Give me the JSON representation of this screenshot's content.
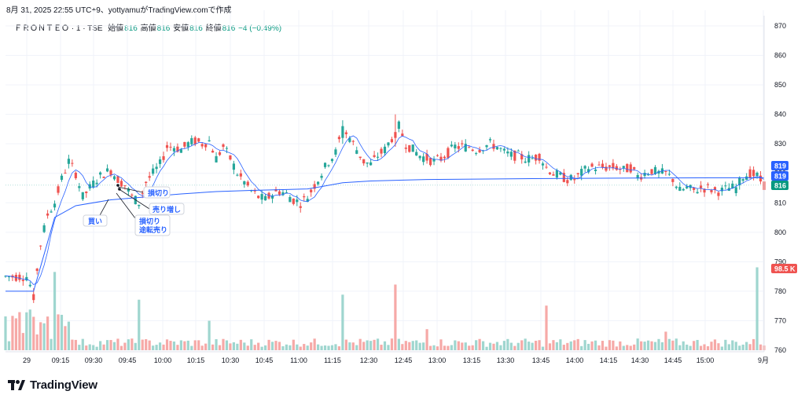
{
  "header": {
    "snapshot_line": "8月 31, 2025 22:55 UTC+9、yottyamuがTradingView.comで作成"
  },
  "legend": {
    "symbol": "ＦＲＯＮＴＥＯ · 1 · TSE",
    "open_label": "始値",
    "open_value": "816",
    "high_label": "高値",
    "high_value": "816",
    "low_label": "安値",
    "low_value": "816",
    "close_label": "終値",
    "close_value": "816",
    "change": "−4 (−0.49%)"
  },
  "footer": {
    "brand": "TradingView"
  },
  "colors": {
    "up": "#26a69a",
    "down": "#ef5350",
    "vwap": "#2962ff",
    "sma": "#2962ff",
    "grid": "#f0f3fa",
    "volume_up": "#9fd6cf",
    "volume_down": "#f6a9a7"
  },
  "chart_data": {
    "type": "candlestick",
    "interval": "1 minute",
    "ylim": [
      760,
      872
    ],
    "y_ticks": [
      "870",
      "860",
      "850",
      "840",
      "830",
      "820",
      "810",
      "800",
      "790",
      "780",
      "770",
      "760"
    ],
    "x_ticks": [
      "29",
      "09:15",
      "09:30",
      "09:45",
      "10:00",
      "10:15",
      "10:30",
      "10:45",
      "11:00",
      "11:15",
      "12:30",
      "12:45",
      "13:00",
      "13:15",
      "13:30",
      "13:45",
      "14:00",
      "14:15",
      "14:30",
      "14:45",
      "15:00",
      "9月"
    ],
    "price_badges": [
      {
        "label": "819",
        "value": 819,
        "color": "#2962ff"
      },
      {
        "label": "819",
        "value": 819,
        "color": "#2962ff"
      },
      {
        "label": "816",
        "value": 816,
        "color": "#089981"
      },
      {
        "label": "98.5 K",
        "value": 787,
        "color": "#ef5350"
      }
    ],
    "annotations": [
      {
        "text": "損切り"
      },
      {
        "text": "売り増し"
      },
      {
        "text": "買い"
      },
      {
        "text": "損切り"
      },
      {
        "text": "途転売り"
      }
    ],
    "close_path": [
      [
        0,
        785
      ],
      [
        6,
        785
      ],
      [
        8,
        779
      ],
      [
        10,
        796
      ],
      [
        12,
        806
      ],
      [
        14,
        810
      ],
      [
        16,
        818
      ],
      [
        18,
        824
      ],
      [
        20,
        820
      ],
      [
        22,
        812
      ],
      [
        24,
        815
      ],
      [
        26,
        818
      ],
      [
        28,
        820
      ],
      [
        30,
        821
      ],
      [
        32,
        818
      ],
      [
        34,
        816
      ],
      [
        36,
        812
      ],
      [
        38,
        810
      ],
      [
        40,
        817
      ],
      [
        42,
        820
      ],
      [
        44,
        823
      ],
      [
        46,
        829
      ],
      [
        48,
        829
      ],
      [
        50,
        828
      ],
      [
        52,
        830
      ],
      [
        54,
        831
      ],
      [
        56,
        830
      ],
      [
        58,
        831
      ],
      [
        60,
        825
      ],
      [
        62,
        829
      ],
      [
        64,
        825
      ],
      [
        66,
        820
      ],
      [
        68,
        817
      ],
      [
        70,
        814
      ],
      [
        72,
        812
      ],
      [
        74,
        811
      ],
      [
        76,
        813
      ],
      [
        78,
        814
      ],
      [
        80,
        813
      ],
      [
        82,
        811
      ],
      [
        84,
        810
      ],
      [
        86,
        812
      ],
      [
        88,
        816
      ],
      [
        90,
        820
      ],
      [
        92,
        824
      ],
      [
        94,
        827
      ],
      [
        96,
        835
      ],
      [
        98,
        832
      ],
      [
        100,
        828
      ],
      [
        102,
        824
      ],
      [
        104,
        823
      ],
      [
        106,
        826
      ],
      [
        108,
        828
      ],
      [
        110,
        832
      ],
      [
        112,
        836
      ],
      [
        114,
        830
      ],
      [
        116,
        828
      ],
      [
        118,
        826
      ],
      [
        120,
        825
      ],
      [
        122,
        824
      ],
      [
        124,
        825
      ],
      [
        126,
        827
      ],
      [
        128,
        829
      ],
      [
        130,
        829
      ],
      [
        132,
        829
      ],
      [
        134,
        828
      ],
      [
        136,
        829
      ],
      [
        138,
        830
      ],
      [
        140,
        829
      ],
      [
        142,
        827
      ],
      [
        144,
        826
      ],
      [
        146,
        826
      ],
      [
        148,
        825
      ],
      [
        150,
        825
      ],
      [
        152,
        826
      ],
      [
        154,
        822
      ],
      [
        156,
        820
      ],
      [
        158,
        819
      ],
      [
        160,
        818
      ],
      [
        162,
        818
      ],
      [
        164,
        820
      ],
      [
        166,
        822
      ],
      [
        168,
        822
      ],
      [
        170,
        822
      ],
      [
        172,
        822
      ],
      [
        174,
        822
      ],
      [
        176,
        821
      ],
      [
        178,
        822
      ],
      [
        180,
        819
      ],
      [
        182,
        820
      ],
      [
        184,
        821
      ],
      [
        186,
        820
      ],
      [
        188,
        820
      ],
      [
        190,
        818
      ],
      [
        192,
        814
      ],
      [
        194,
        815
      ],
      [
        196,
        814
      ],
      [
        198,
        815
      ],
      [
        200,
        815
      ],
      [
        202,
        814
      ],
      [
        204,
        814
      ],
      [
        206,
        815
      ],
      [
        208,
        815
      ],
      [
        210,
        819
      ],
      [
        212,
        820
      ],
      [
        214,
        819
      ],
      [
        216,
        816
      ]
    ],
    "vwap_path": [
      [
        0,
        780
      ],
      [
        8,
        780
      ],
      [
        14,
        805
      ],
      [
        20,
        809
      ],
      [
        30,
        811
      ],
      [
        40,
        812
      ],
      [
        50,
        813
      ],
      [
        60,
        813.8
      ],
      [
        70,
        814.2
      ],
      [
        80,
        814.5
      ],
      [
        86,
        814.7
      ],
      [
        90,
        815.5
      ],
      [
        96,
        816.8
      ],
      [
        104,
        817.4
      ],
      [
        120,
        817.9
      ],
      [
        150,
        818.2
      ],
      [
        180,
        818.4
      ],
      [
        216,
        818.5
      ]
    ],
    "volume_max_label": "98.5 K"
  }
}
